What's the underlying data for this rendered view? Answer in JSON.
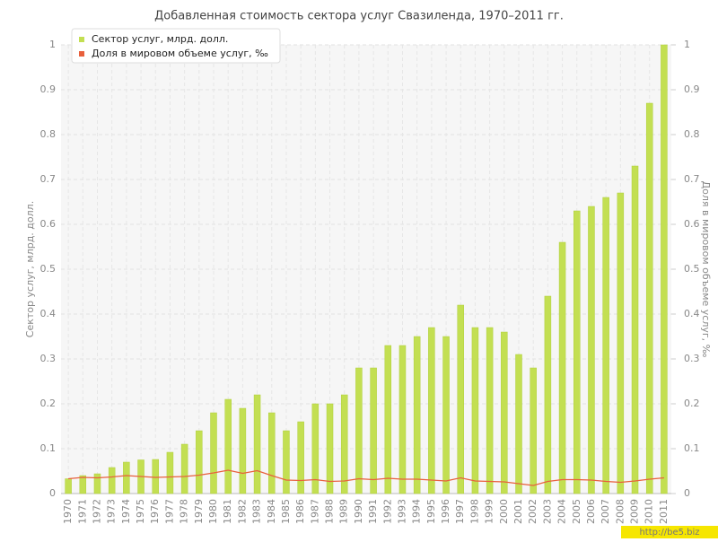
{
  "chart_data": {
    "type": "bar",
    "title": "Добавленная стоимость сектора услуг Свазиленда, 1970–2011 гг.",
    "y_label": "Сектор услуг, млрд. долл.",
    "y2_label": "Доля в мировом объеме услуг, ‰",
    "watermark": "http://be5.biz",
    "categories": [
      "1970",
      "1971",
      "1972",
      "1973",
      "1974",
      "1975",
      "1976",
      "1977",
      "1978",
      "1979",
      "1980",
      "1981",
      "1982",
      "1983",
      "1984",
      "1985",
      "1986",
      "1987",
      "1988",
      "1989",
      "1990",
      "1991",
      "1992",
      "1993",
      "1994",
      "1995",
      "1996",
      "1997",
      "1998",
      "1999",
      "2000",
      "2001",
      "2002",
      "2003",
      "2004",
      "2005",
      "2006",
      "2007",
      "2008",
      "2009",
      "2010",
      "2011"
    ],
    "series": [
      {
        "name": "Сектор услуг, млрд. долл.",
        "type": "bar",
        "color": "#c3df52",
        "values": [
          0.033,
          0.04,
          0.044,
          0.058,
          0.07,
          0.075,
          0.076,
          0.092,
          0.11,
          0.14,
          0.18,
          0.21,
          0.19,
          0.22,
          0.18,
          0.14,
          0.16,
          0.2,
          0.2,
          0.22,
          0.28,
          0.28,
          0.33,
          0.33,
          0.35,
          0.37,
          0.35,
          0.42,
          0.37,
          0.37,
          0.36,
          0.31,
          0.28,
          0.44,
          0.56,
          0.63,
          0.64,
          0.66,
          0.67,
          0.73,
          0.87,
          1.0
        ]
      },
      {
        "name": "Доля в мировом объеме услуг, ‰",
        "type": "line",
        "axis": "y2",
        "color": "#e8603c",
        "values": [
          0.033,
          0.036,
          0.035,
          0.037,
          0.04,
          0.038,
          0.036,
          0.037,
          0.038,
          0.041,
          0.046,
          0.052,
          0.045,
          0.051,
          0.04,
          0.03,
          0.029,
          0.031,
          0.027,
          0.028,
          0.033,
          0.031,
          0.034,
          0.032,
          0.032,
          0.03,
          0.028,
          0.035,
          0.028,
          0.027,
          0.026,
          0.022,
          0.018,
          0.027,
          0.031,
          0.031,
          0.03,
          0.027,
          0.025,
          0.028,
          0.032,
          0.035
        ]
      }
    ],
    "ylim": [
      0,
      1
    ],
    "yticks": [
      0,
      0.1,
      0.2,
      0.3,
      0.4,
      0.5,
      0.6,
      0.7,
      0.8,
      0.9,
      1
    ],
    "y2lim": [
      0,
      1
    ],
    "y2ticks": [
      0,
      0.1,
      0.2,
      0.3,
      0.4,
      0.5,
      0.6,
      0.7,
      0.8,
      0.9,
      1
    ],
    "grid": true,
    "legend": "top-left"
  }
}
